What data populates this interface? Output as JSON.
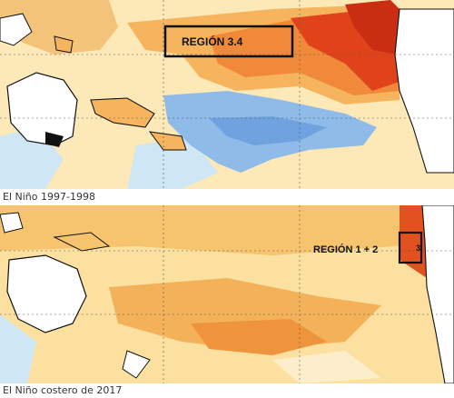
{
  "maps": [
    {
      "caption": "El Niño 1997-1998",
      "region": {
        "label": "REGIÓN 3.4"
      }
    },
    {
      "caption": "El Niño costero de 2017",
      "region": {
        "label": "REGIÓN 1 + 2",
        "box_number": "3"
      }
    }
  ],
  "colors": {
    "strong_warm": "#e0431a",
    "warm": "#f2923a",
    "mild_warm": "#f7c66a",
    "pale_warm": "#fbe2a0",
    "neutral": "#fdf4d8",
    "cool": "#bcdcf2",
    "cold": "#7fb2e6",
    "land": "#ffffff",
    "coast": "#111111"
  }
}
